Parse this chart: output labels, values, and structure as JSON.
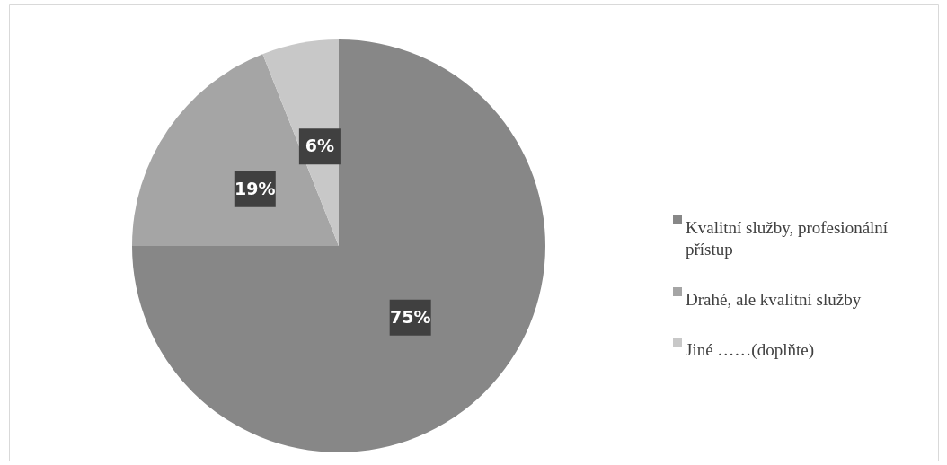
{
  "chart_data": {
    "type": "pie",
    "categories": [
      "Kvalitní služby, profesionální přístup",
      "Drahé, ale kvalitní služby",
      "Jiné ……(doplňte)"
    ],
    "values": [
      75,
      19,
      6
    ],
    "colors": [
      "#878787",
      "#a5a5a5",
      "#c8c8c8"
    ],
    "value_labels": [
      "75%",
      "19%",
      "6%"
    ],
    "legend": "right"
  }
}
